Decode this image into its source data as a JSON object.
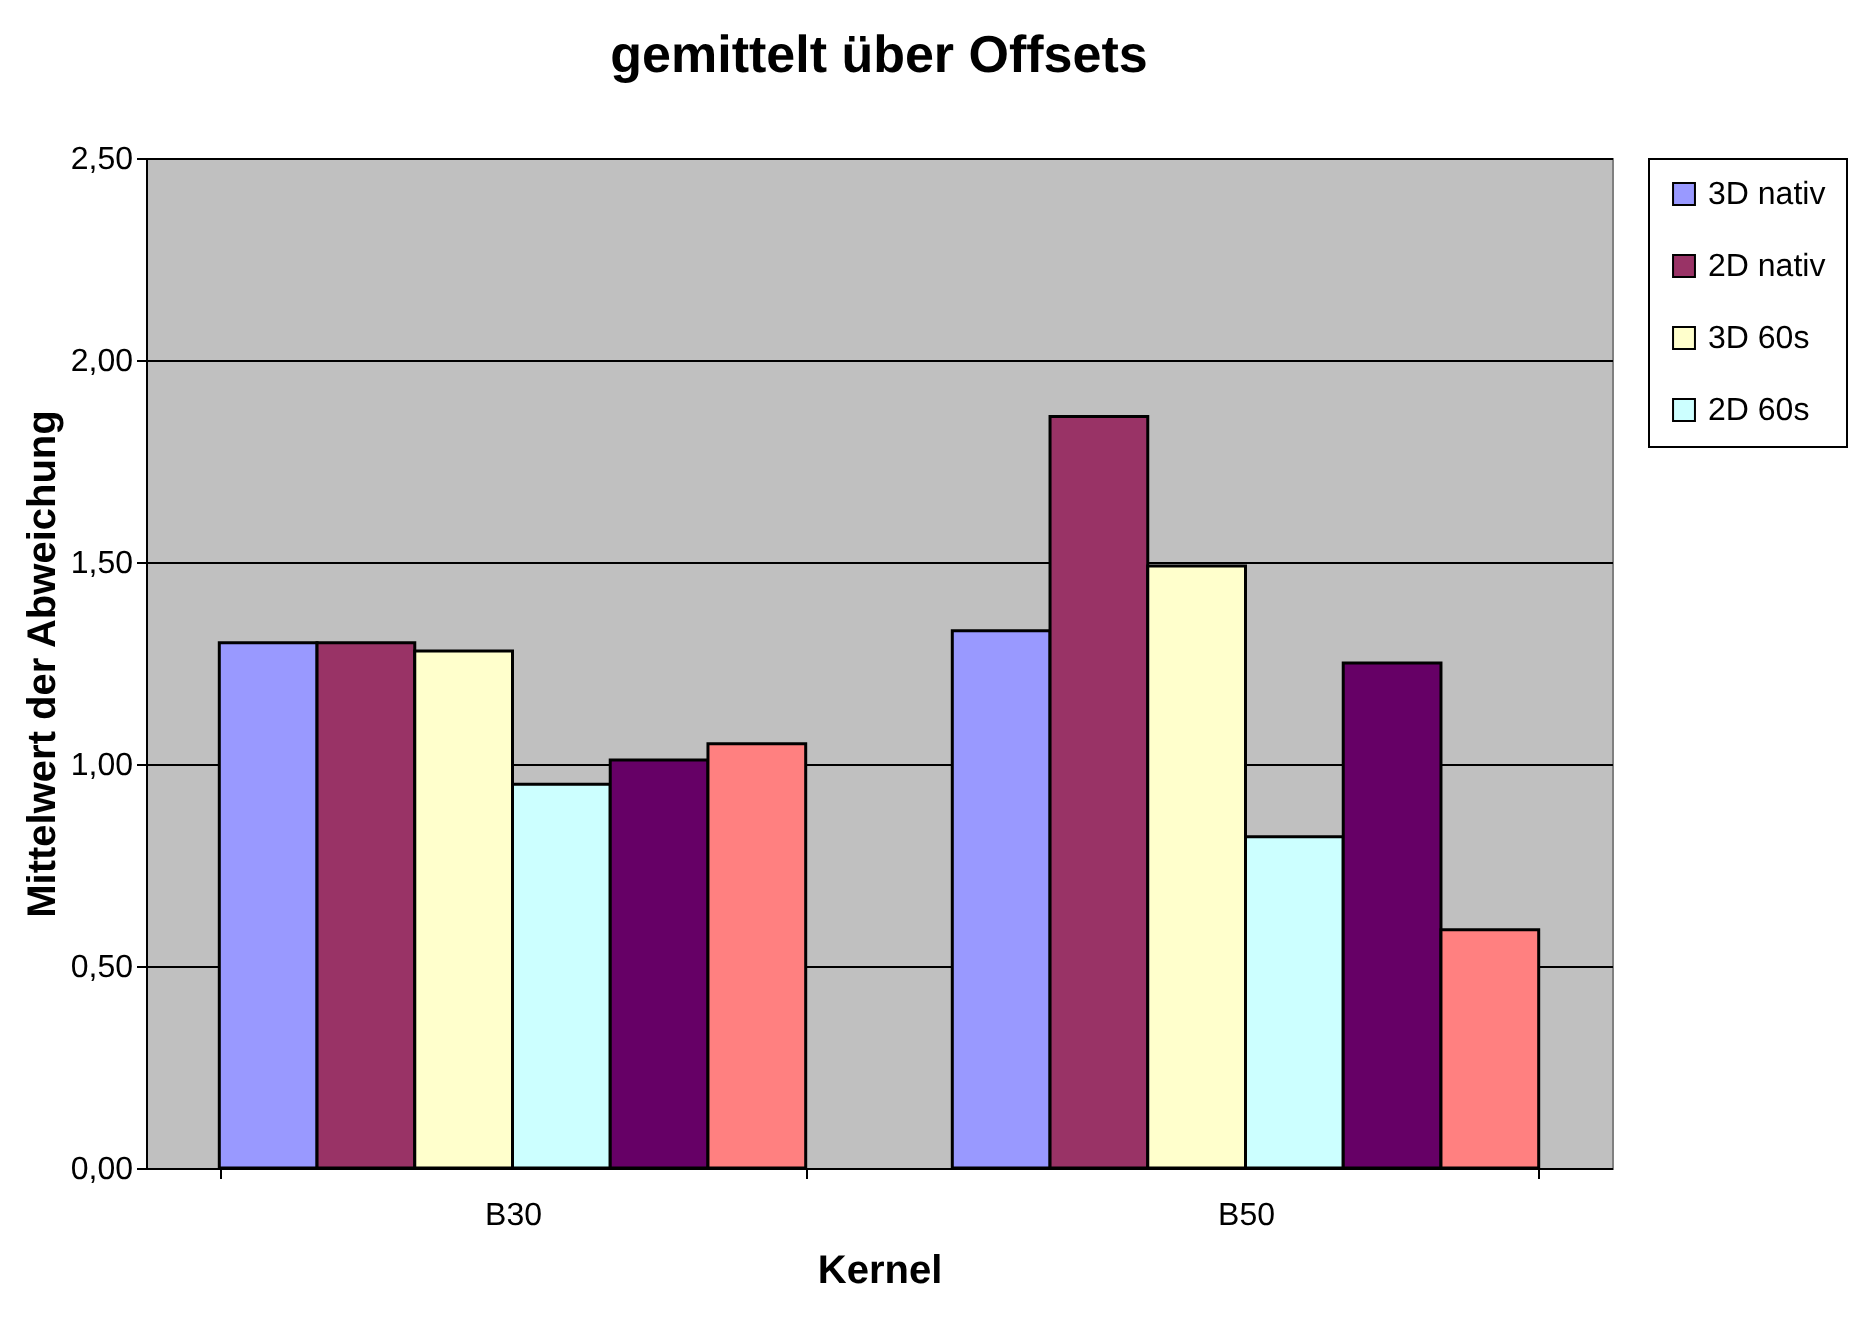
{
  "chart_data": {
    "type": "bar",
    "title": "gemittelt über Offsets",
    "xlabel": "Kernel",
    "ylabel": "Mittelwert der Abweichung",
    "categories": [
      "B30",
      "B50"
    ],
    "series": [
      {
        "name": "3D nativ",
        "color": "#9999ff",
        "values": [
          1.3,
          1.33
        ]
      },
      {
        "name": "2D nativ",
        "color": "#993366",
        "values": [
          1.3,
          1.86
        ]
      },
      {
        "name": "3D 60s",
        "color": "#ffffcc",
        "values": [
          1.28,
          1.49
        ]
      },
      {
        "name": "2D 60s",
        "color": "#ccffff",
        "values": [
          0.95,
          0.82
        ]
      },
      {
        "color": "#660066",
        "values": [
          1.01,
          1.25
        ]
      },
      {
        "color": "#ff8080",
        "values": [
          1.05,
          0.59
        ]
      }
    ],
    "ylim": [
      0,
      2.5
    ],
    "yticks": [
      {
        "value": 0,
        "label": "0,00"
      },
      {
        "value": 0.5,
        "label": "0,50"
      },
      {
        "value": 1,
        "label": "1,00"
      },
      {
        "value": 1.5,
        "label": "1,50"
      },
      {
        "value": 2,
        "label": "2,00"
      },
      {
        "value": 2.5,
        "label": "2,50"
      }
    ],
    "grid": "y",
    "legend": "right"
  }
}
